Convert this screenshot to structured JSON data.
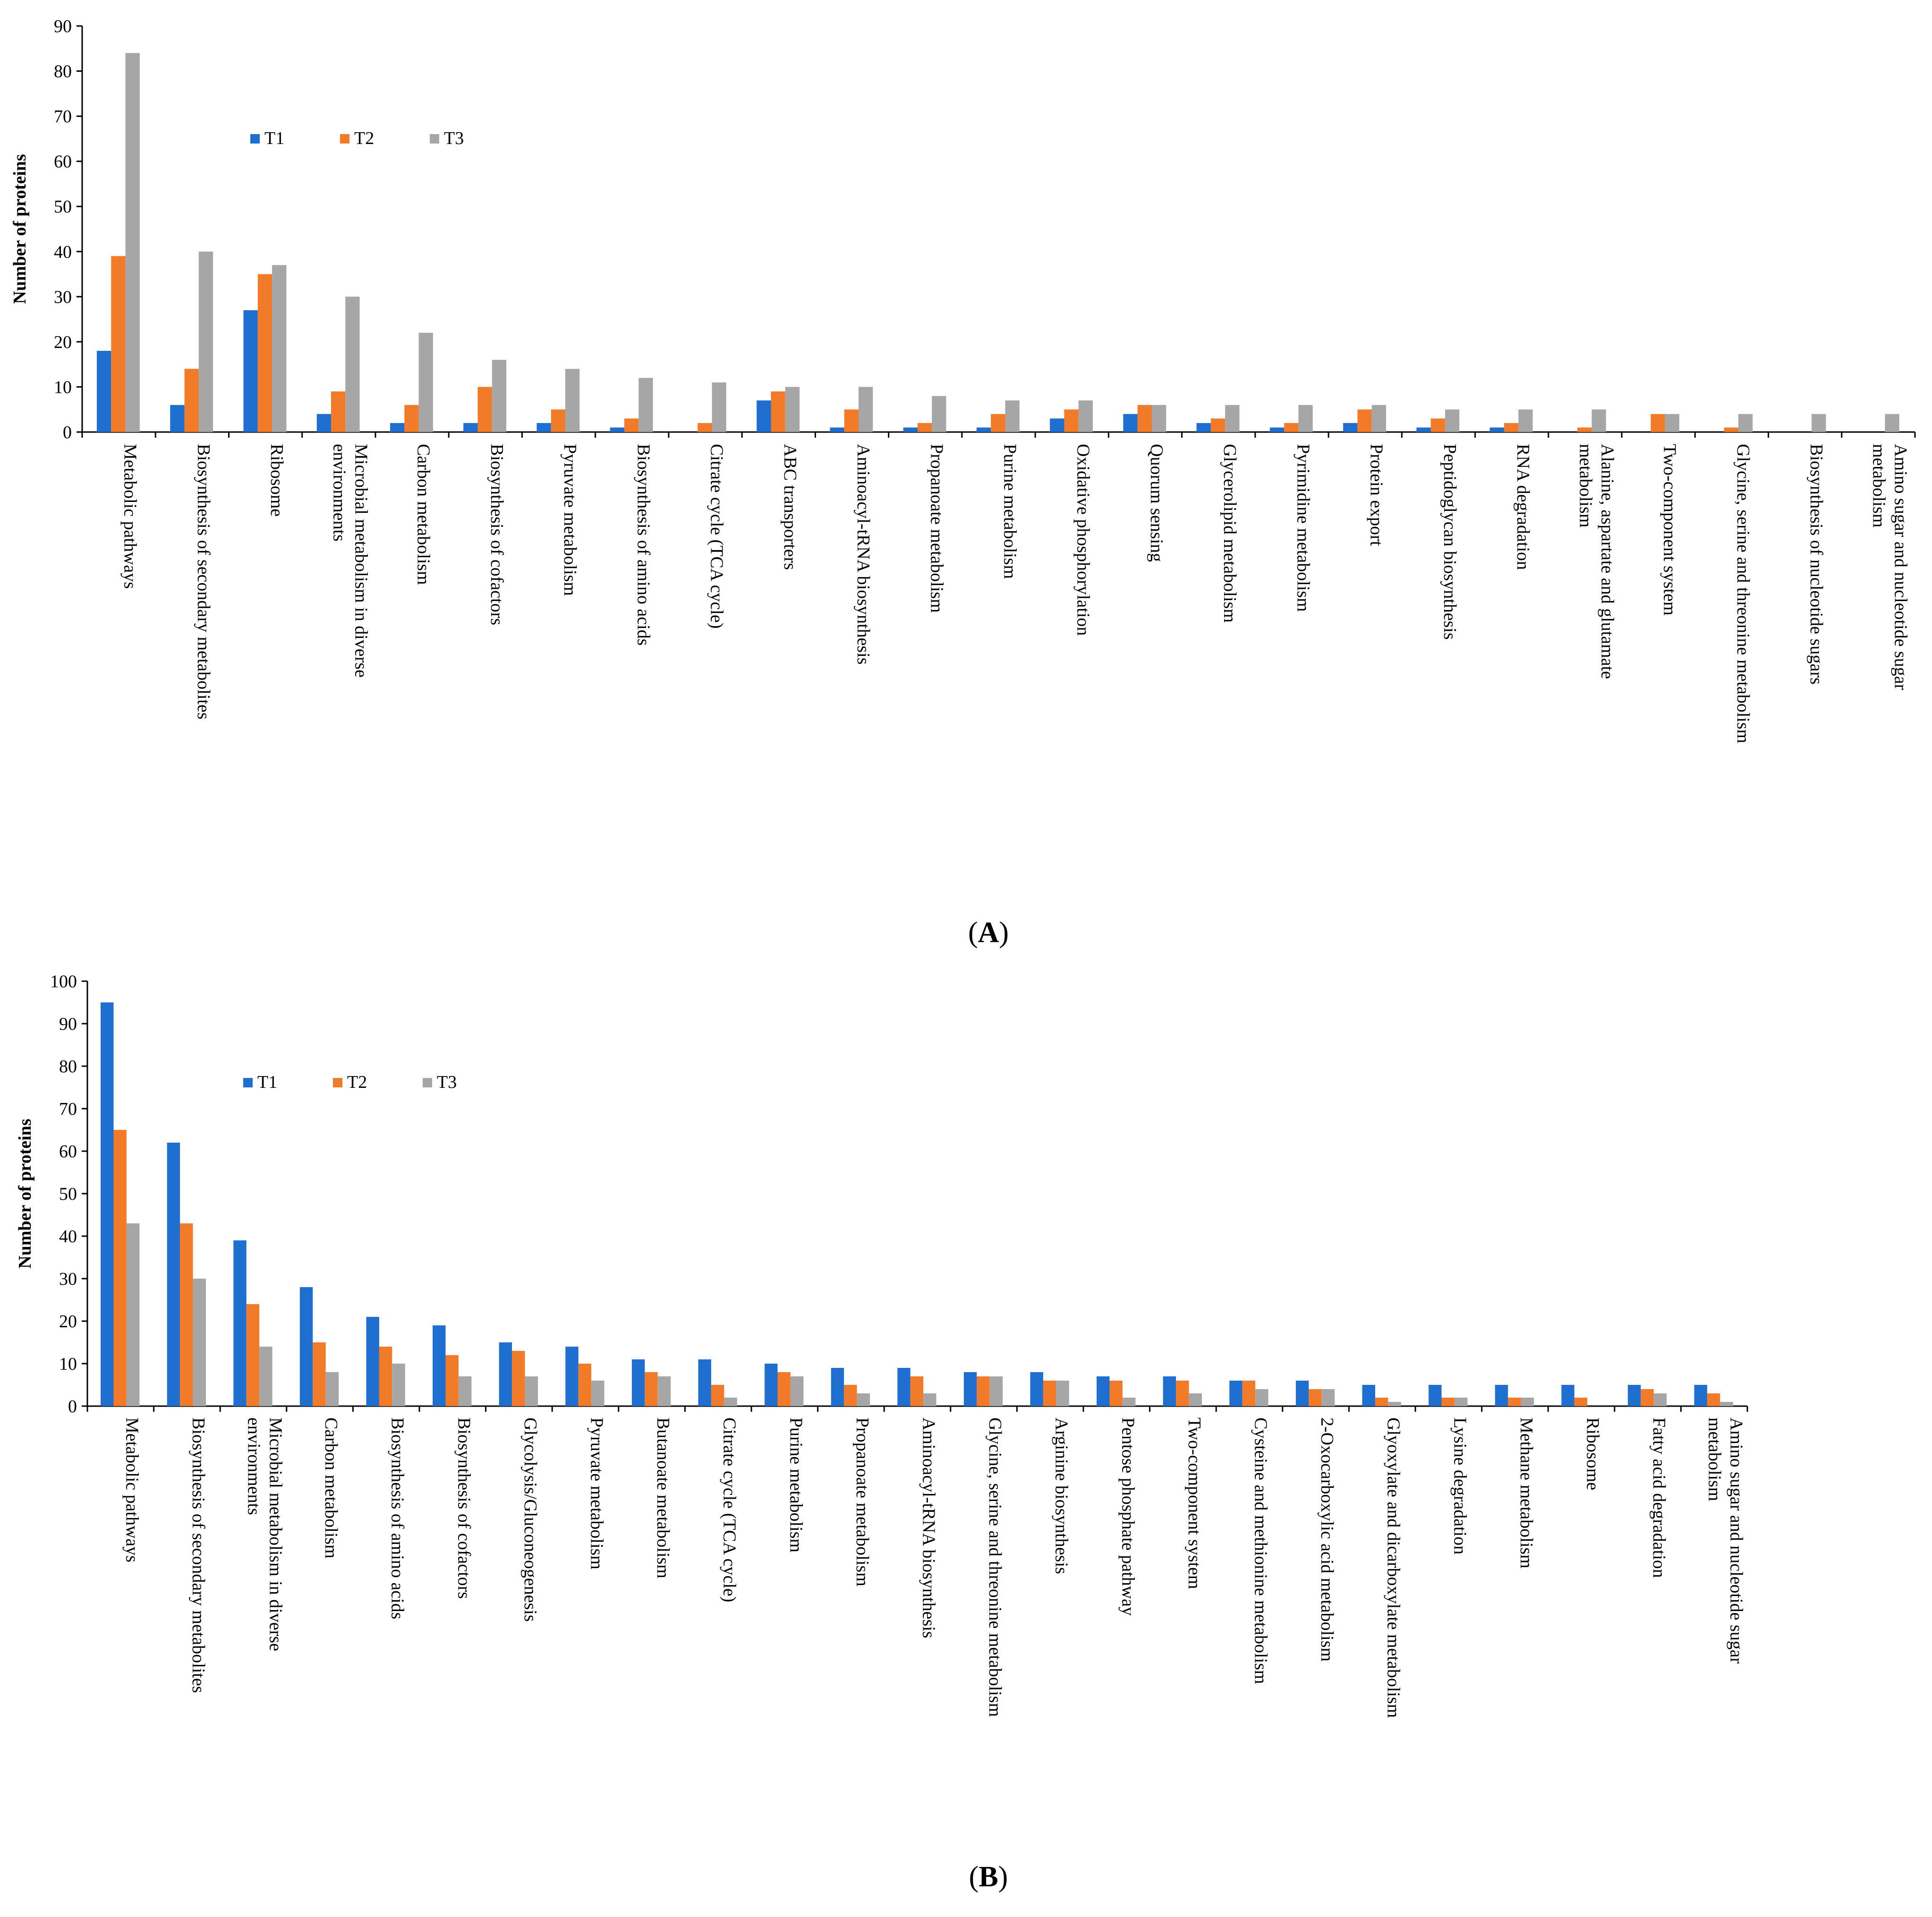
{
  "colors": {
    "T1": "#1F6FD1",
    "T2": "#F27B2A",
    "T3": "#A6A6A6"
  },
  "chart_data": [
    {
      "panel": "A",
      "panel_label_open": "(",
      "panel_label_letter": "A",
      "panel_label_close": ")",
      "type": "bar",
      "title": "",
      "xlabel": "",
      "ylabel": "Number of proteins",
      "ylim": [
        0,
        90
      ],
      "yticks": [
        0,
        10,
        20,
        30,
        40,
        50,
        60,
        70,
        80,
        90
      ],
      "legend": "top-left",
      "categories": [
        [
          "Metabolic pathways"
        ],
        [
          "Biosynthesis of secondary metabolites"
        ],
        [
          "Ribosome"
        ],
        [
          "Microbial metabolism in diverse",
          "environments"
        ],
        [
          "Carbon metabolism"
        ],
        [
          "Biosynthesis of cofactors"
        ],
        [
          "Pyruvate metabolism"
        ],
        [
          "Biosynthesis of amino acids"
        ],
        [
          "Citrate cycle (TCA cycle)"
        ],
        [
          "ABC transporters"
        ],
        [
          "Aminoacyl-tRNA biosynthesis"
        ],
        [
          "Propanoate metabolism"
        ],
        [
          "Purine metabolism"
        ],
        [
          "Oxidative phosphorylation"
        ],
        [
          "Quorum sensing"
        ],
        [
          "Glycerolipid metabolism"
        ],
        [
          "Pyrimidine metabolism"
        ],
        [
          "Protein export"
        ],
        [
          "Peptidoglycan biosynthesis"
        ],
        [
          "RNA degradation"
        ],
        [
          "Alanine, aspartate and glutamate",
          "metabolism"
        ],
        [
          "Two-component system"
        ],
        [
          "Glycine, serine and threonine metabolism"
        ],
        [
          "Biosynthesis of nucleotide sugars"
        ],
        [
          "Amino sugar and nucleotide sugar",
          "metabolism"
        ]
      ],
      "series": [
        {
          "name": "T1",
          "values": [
            18,
            6,
            27,
            4,
            2,
            2,
            2,
            1,
            0,
            7,
            1,
            1,
            1,
            3,
            4,
            2,
            1,
            2,
            1,
            1,
            0,
            0,
            0,
            0,
            0
          ]
        },
        {
          "name": "T2",
          "values": [
            39,
            14,
            35,
            9,
            6,
            10,
            5,
            3,
            2,
            9,
            5,
            2,
            4,
            5,
            6,
            3,
            2,
            5,
            3,
            2,
            1,
            4,
            1,
            0,
            0
          ]
        },
        {
          "name": "T3",
          "values": [
            84,
            40,
            37,
            30,
            22,
            16,
            14,
            12,
            11,
            10,
            10,
            8,
            7,
            7,
            6,
            6,
            6,
            6,
            5,
            5,
            5,
            4,
            4,
            4,
            4
          ]
        }
      ]
    },
    {
      "panel": "B",
      "panel_label_open": "(",
      "panel_label_letter": "B",
      "panel_label_close": ")",
      "type": "bar",
      "title": "",
      "xlabel": "",
      "ylabel": "Number of proteins",
      "ylim": [
        0,
        100
      ],
      "yticks": [
        0,
        10,
        20,
        30,
        40,
        50,
        60,
        70,
        80,
        90,
        100
      ],
      "legend": "top-left",
      "categories": [
        [
          "Metabolic pathways"
        ],
        [
          "Biosynthesis of secondary metabolites"
        ],
        [
          "Microbial metabolism in diverse",
          "environments"
        ],
        [
          "Carbon metabolism"
        ],
        [
          "Biosynthesis of amino acids"
        ],
        [
          "Biosynthesis of cofactors"
        ],
        [
          "Glycolysis/Gluconeogenesis"
        ],
        [
          "Pyruvate metabolism"
        ],
        [
          "Butanoate metabolism"
        ],
        [
          "Citrate cycle (TCA cycle)"
        ],
        [
          "Purine metabolism"
        ],
        [
          "Propanoate metabolism"
        ],
        [
          "Aminoacyl-tRNA biosynthesis"
        ],
        [
          "Glycine, serine and threonine metabolism"
        ],
        [
          "Arginine biosynthesis"
        ],
        [
          "Pentose phosphate pathway"
        ],
        [
          "Two-component system"
        ],
        [
          "Cysteine and methionine metabolism"
        ],
        [
          "2-Oxocarboxylic acid metabolism"
        ],
        [
          "Glyoxylate and dicarboxylate metabolism"
        ],
        [
          "Lysine degradation"
        ],
        [
          "Methane metabolism"
        ],
        [
          "Ribosome"
        ],
        [
          "Fatty acid degradation"
        ],
        [
          "Amino sugar and nucleotide sugar",
          "metabolism"
        ]
      ],
      "series": [
        {
          "name": "T1",
          "values": [
            95,
            62,
            39,
            28,
            21,
            19,
            15,
            14,
            11,
            11,
            10,
            9,
            9,
            8,
            8,
            7,
            7,
            6,
            6,
            5,
            5,
            5,
            5,
            5,
            5
          ]
        },
        {
          "name": "T2",
          "values": [
            65,
            43,
            24,
            15,
            14,
            12,
            13,
            10,
            8,
            5,
            8,
            5,
            7,
            7,
            6,
            6,
            6,
            6,
            4,
            2,
            2,
            2,
            2,
            4,
            3
          ]
        },
        {
          "name": "T3",
          "values": [
            43,
            30,
            14,
            8,
            10,
            7,
            7,
            6,
            7,
            2,
            7,
            3,
            3,
            7,
            6,
            2,
            3,
            4,
            4,
            1,
            2,
            2,
            0,
            3,
            1
          ]
        }
      ]
    }
  ]
}
